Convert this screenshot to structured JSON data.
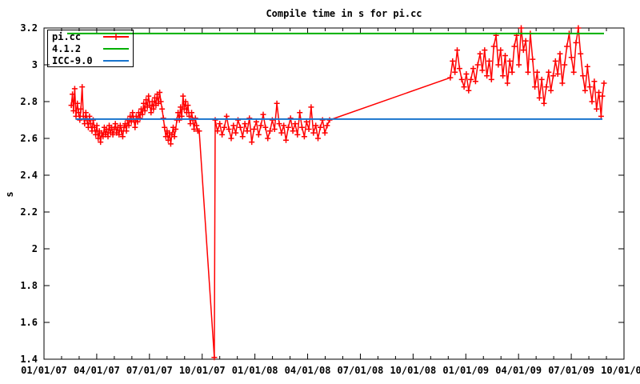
{
  "title": "Compile time in s for pi.cc",
  "y_axis_title": "s",
  "colors": {
    "background": "#ffffff",
    "frame": "#000000",
    "series_pi_cc": "#ff0000",
    "series_4_1_2": "#00b000",
    "series_icc_9_0": "#1874cd"
  },
  "legend": {
    "entries": [
      {
        "label": "pi.cc",
        "color": "#ff0000",
        "style": "line-with-plus-marker"
      },
      {
        "label": "4.1.2",
        "color": "#00b000",
        "style": "line"
      },
      {
        "label": "ICC-9.0",
        "color": "#1874cd",
        "style": "line"
      }
    ]
  },
  "chart_data": {
    "type": "line",
    "title": "Compile time in s for pi.cc",
    "xlabel": "",
    "ylabel": "s",
    "x_unit": "months since 2007-01-01",
    "xlim": [
      0,
      33
    ],
    "ylim": [
      1.4,
      3.2
    ],
    "grid": false,
    "legend_position": "top-left",
    "x_tick_labels": [
      "01/01/07",
      "04/01/07",
      "07/01/07",
      "10/01/07",
      "01/01/08",
      "04/01/08",
      "07/01/08",
      "10/01/08",
      "01/01/09",
      "04/01/09",
      "07/01/09",
      "10/01/09"
    ],
    "x_tick_positions": [
      0,
      3,
      6,
      9,
      12,
      15,
      18,
      21,
      24,
      27,
      30,
      33
    ],
    "x_minor_tick_every": 1,
    "y_tick_labels": [
      "1.4",
      "1.6",
      "1.8",
      "2",
      "2.2",
      "2.4",
      "2.6",
      "2.8",
      "3",
      "3.2"
    ],
    "y_tick_positions": [
      1.4,
      1.6,
      1.8,
      2,
      2.2,
      2.4,
      2.6,
      2.8,
      3,
      3.2
    ],
    "series": [
      {
        "name": "pi.cc",
        "color_hex": "#ff0000",
        "draw_style": "linespoints",
        "marker": "plus",
        "points": [
          [
            1.55,
            2.78
          ],
          [
            1.62,
            2.84
          ],
          [
            1.68,
            2.75
          ],
          [
            1.75,
            2.87
          ],
          [
            1.82,
            2.72
          ],
          [
            1.9,
            2.79
          ],
          [
            1.97,
            2.74
          ],
          [
            2.04,
            2.7
          ],
          [
            2.1,
            2.76
          ],
          [
            2.17,
            2.88
          ],
          [
            2.24,
            2.72
          ],
          [
            2.31,
            2.68
          ],
          [
            2.38,
            2.74
          ],
          [
            2.45,
            2.7
          ],
          [
            2.52,
            2.66
          ],
          [
            2.59,
            2.72
          ],
          [
            2.66,
            2.68
          ],
          [
            2.73,
            2.64
          ],
          [
            2.8,
            2.7
          ],
          [
            2.87,
            2.66
          ],
          [
            2.94,
            2.62
          ],
          [
            3.01,
            2.67
          ],
          [
            3.08,
            2.6
          ],
          [
            3.15,
            2.64
          ],
          [
            3.22,
            2.58
          ],
          [
            3.29,
            2.63
          ],
          [
            3.36,
            2.61
          ],
          [
            3.43,
            2.66
          ],
          [
            3.5,
            2.62
          ],
          [
            3.57,
            2.65
          ],
          [
            3.64,
            2.61
          ],
          [
            3.71,
            2.67
          ],
          [
            3.78,
            2.63
          ],
          [
            3.85,
            2.66
          ],
          [
            3.92,
            2.62
          ],
          [
            3.99,
            2.65
          ],
          [
            4.06,
            2.68
          ],
          [
            4.13,
            2.63
          ],
          [
            4.2,
            2.66
          ],
          [
            4.27,
            2.62
          ],
          [
            4.34,
            2.67
          ],
          [
            4.41,
            2.64
          ],
          [
            4.48,
            2.61
          ],
          [
            4.55,
            2.66
          ],
          [
            4.62,
            2.68
          ],
          [
            4.69,
            2.64
          ],
          [
            4.76,
            2.7
          ],
          [
            4.83,
            2.67
          ],
          [
            4.9,
            2.72
          ],
          [
            4.97,
            2.69
          ],
          [
            5.04,
            2.74
          ],
          [
            5.11,
            2.7
          ],
          [
            5.18,
            2.66
          ],
          [
            5.25,
            2.72
          ],
          [
            5.32,
            2.69
          ],
          [
            5.39,
            2.74
          ],
          [
            5.46,
            2.71
          ],
          [
            5.53,
            2.76
          ],
          [
            5.6,
            2.73
          ],
          [
            5.67,
            2.79
          ],
          [
            5.74,
            2.75
          ],
          [
            5.81,
            2.81
          ],
          [
            5.88,
            2.77
          ],
          [
            5.95,
            2.83
          ],
          [
            6.02,
            2.78
          ],
          [
            6.09,
            2.74
          ],
          [
            6.16,
            2.8
          ],
          [
            6.23,
            2.76
          ],
          [
            6.3,
            2.82
          ],
          [
            6.37,
            2.78
          ],
          [
            6.44,
            2.84
          ],
          [
            6.51,
            2.79
          ],
          [
            6.58,
            2.85
          ],
          [
            6.65,
            2.8
          ],
          [
            6.72,
            2.76
          ],
          [
            6.79,
            2.71
          ],
          [
            6.86,
            2.66
          ],
          [
            6.93,
            2.61
          ],
          [
            7.0,
            2.64
          ],
          [
            7.07,
            2.59
          ],
          [
            7.14,
            2.63
          ],
          [
            7.21,
            2.57
          ],
          [
            7.28,
            2.62
          ],
          [
            7.35,
            2.66
          ],
          [
            7.42,
            2.61
          ],
          [
            7.49,
            2.65
          ],
          [
            7.56,
            2.7
          ],
          [
            7.63,
            2.74
          ],
          [
            7.7,
            2.7
          ],
          [
            7.77,
            2.77
          ],
          [
            7.84,
            2.72
          ],
          [
            7.91,
            2.83
          ],
          [
            7.98,
            2.76
          ],
          [
            8.05,
            2.8
          ],
          [
            8.12,
            2.74
          ],
          [
            8.19,
            2.78
          ],
          [
            8.26,
            2.72
          ],
          [
            8.33,
            2.68
          ],
          [
            8.4,
            2.74
          ],
          [
            8.47,
            2.7
          ],
          [
            8.54,
            2.65
          ],
          [
            8.61,
            2.71
          ],
          [
            8.68,
            2.67
          ],
          [
            8.75,
            2.64
          ],
          [
            8.83,
            2.64
          ],
          [
            9.69,
            1.41
          ],
          [
            9.74,
            2.7
          ],
          [
            9.87,
            2.64
          ],
          [
            10.0,
            2.68
          ],
          [
            10.13,
            2.62
          ],
          [
            10.26,
            2.66
          ],
          [
            10.39,
            2.72
          ],
          [
            10.52,
            2.65
          ],
          [
            10.65,
            2.6
          ],
          [
            10.78,
            2.67
          ],
          [
            10.91,
            2.63
          ],
          [
            11.04,
            2.7
          ],
          [
            11.17,
            2.66
          ],
          [
            11.3,
            2.61
          ],
          [
            11.43,
            2.68
          ],
          [
            11.56,
            2.64
          ],
          [
            11.69,
            2.71
          ],
          [
            11.82,
            2.58
          ],
          [
            11.95,
            2.65
          ],
          [
            12.08,
            2.69
          ],
          [
            12.21,
            2.62
          ],
          [
            12.34,
            2.67
          ],
          [
            12.47,
            2.73
          ],
          [
            12.6,
            2.66
          ],
          [
            12.73,
            2.6
          ],
          [
            12.86,
            2.64
          ],
          [
            12.99,
            2.7
          ],
          [
            13.12,
            2.65
          ],
          [
            13.25,
            2.79
          ],
          [
            13.38,
            2.68
          ],
          [
            13.51,
            2.63
          ],
          [
            13.64,
            2.67
          ],
          [
            13.77,
            2.59
          ],
          [
            13.9,
            2.66
          ],
          [
            14.03,
            2.71
          ],
          [
            14.16,
            2.64
          ],
          [
            14.29,
            2.68
          ],
          [
            14.42,
            2.62
          ],
          [
            14.55,
            2.74
          ],
          [
            14.68,
            2.66
          ],
          [
            14.81,
            2.61
          ],
          [
            14.94,
            2.69
          ],
          [
            15.07,
            2.65
          ],
          [
            15.2,
            2.77
          ],
          [
            15.33,
            2.63
          ],
          [
            15.46,
            2.67
          ],
          [
            15.59,
            2.6
          ],
          [
            15.72,
            2.66
          ],
          [
            15.85,
            2.7
          ],
          [
            15.98,
            2.63
          ],
          [
            16.11,
            2.67
          ],
          [
            16.25,
            2.7
          ],
          [
            23.12,
            2.93
          ],
          [
            23.25,
            3.02
          ],
          [
            23.38,
            2.96
          ],
          [
            23.51,
            3.08
          ],
          [
            23.64,
            2.98
          ],
          [
            23.77,
            2.92
          ],
          [
            23.9,
            2.88
          ],
          [
            24.03,
            2.95
          ],
          [
            24.16,
            2.86
          ],
          [
            24.29,
            2.92
          ],
          [
            24.42,
            2.98
          ],
          [
            24.55,
            2.91
          ],
          [
            24.68,
            3.0
          ],
          [
            24.81,
            3.06
          ],
          [
            24.94,
            2.97
          ],
          [
            25.07,
            3.08
          ],
          [
            25.2,
            2.94
          ],
          [
            25.33,
            3.02
          ],
          [
            25.46,
            2.92
          ],
          [
            25.59,
            3.1
          ],
          [
            25.72,
            3.16
          ],
          [
            25.85,
            3.0
          ],
          [
            25.98,
            3.08
          ],
          [
            26.11,
            2.94
          ],
          [
            26.24,
            3.05
          ],
          [
            26.37,
            2.9
          ],
          [
            26.5,
            3.02
          ],
          [
            26.63,
            2.96
          ],
          [
            26.76,
            3.1
          ],
          [
            26.89,
            3.16
          ],
          [
            27.02,
            3.0
          ],
          [
            27.15,
            3.2
          ],
          [
            27.28,
            3.08
          ],
          [
            27.41,
            3.13
          ],
          [
            27.54,
            2.96
          ],
          [
            27.67,
            3.17
          ],
          [
            27.8,
            3.03
          ],
          [
            27.93,
            2.88
          ],
          [
            28.06,
            2.96
          ],
          [
            28.19,
            2.82
          ],
          [
            28.32,
            2.92
          ],
          [
            28.45,
            2.79
          ],
          [
            28.58,
            2.88
          ],
          [
            28.71,
            2.96
          ],
          [
            28.84,
            2.86
          ],
          [
            28.97,
            2.94
          ],
          [
            29.1,
            3.02
          ],
          [
            29.23,
            2.95
          ],
          [
            29.36,
            3.06
          ],
          [
            29.49,
            2.9
          ],
          [
            29.62,
            3.0
          ],
          [
            29.75,
            3.1
          ],
          [
            29.88,
            3.17
          ],
          [
            30.01,
            3.04
          ],
          [
            30.14,
            2.96
          ],
          [
            30.27,
            3.12
          ],
          [
            30.4,
            3.2
          ],
          [
            30.53,
            3.06
          ],
          [
            30.66,
            2.94
          ],
          [
            30.79,
            2.86
          ],
          [
            30.92,
            2.99
          ],
          [
            31.05,
            2.88
          ],
          [
            31.18,
            2.8
          ],
          [
            31.31,
            2.91
          ],
          [
            31.44,
            2.76
          ],
          [
            31.57,
            2.85
          ],
          [
            31.7,
            2.72
          ],
          [
            31.77,
            2.83
          ],
          [
            31.86,
            2.9
          ]
        ]
      },
      {
        "name": "4.1.2",
        "color_hex": "#00b000",
        "draw_style": "line",
        "points": [
          [
            1.32,
            3.17
          ],
          [
            31.86,
            3.17
          ]
        ]
      },
      {
        "name": "ICC-9.0",
        "color_hex": "#1874cd",
        "draw_style": "line",
        "points": [
          [
            1.8,
            2.705
          ],
          [
            31.77,
            2.705
          ]
        ]
      }
    ]
  }
}
